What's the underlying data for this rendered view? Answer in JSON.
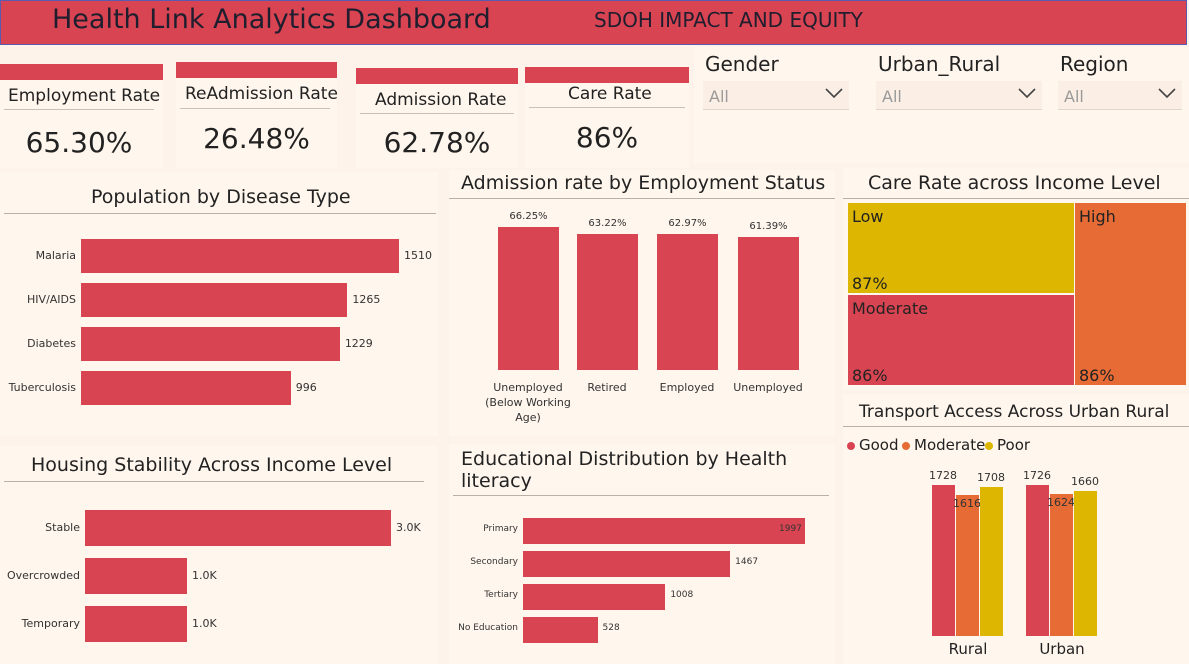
{
  "header": {
    "title": "Health Link Analytics Dashboard",
    "subtitle": "SDOH IMPACT AND EQUITY",
    "color": "#d94452"
  },
  "kpis": [
    {
      "label": "Employment Rate",
      "value": "65.30%"
    },
    {
      "label": "ReAdmission Rate",
      "value": "26.48%"
    },
    {
      "label": "Admission Rate",
      "value": "62.78%"
    },
    {
      "label": "Care Rate",
      "value": "86%"
    }
  ],
  "slicers": [
    {
      "label": "Gender",
      "value": "All",
      "icon": "chevron-down-icon"
    },
    {
      "label": "Urban_Rural",
      "value": "All",
      "icon": "chevron-down-icon"
    },
    {
      "label": "Region",
      "value": "All",
      "icon": "chevron-down-icon"
    }
  ],
  "colors": {
    "red": "#d94452",
    "orange": "#e76b35",
    "yellow": "#dcb600",
    "bg": "#fdf3ea"
  },
  "chart_data": [
    {
      "type": "bar",
      "orientation": "horizontal",
      "title": "Population by Disease Type",
      "categories": [
        "Malaria",
        "HIV/AIDS",
        "Diabetes",
        "Tuberculosis"
      ],
      "values": [
        1510,
        1265,
        1229,
        996
      ],
      "value_labels": [
        "1510",
        "1265",
        "1229",
        "996"
      ]
    },
    {
      "type": "bar",
      "orientation": "vertical",
      "title": "Admission rate by Employment Status",
      "categories": [
        "Unemployed (Below Working Age)",
        "Retired",
        "Employed",
        "Unemployed"
      ],
      "values": [
        66.25,
        63.22,
        62.97,
        61.39
      ],
      "value_labels": [
        "66.25%",
        "63.22%",
        "62.97%",
        "61.39%"
      ]
    },
    {
      "type": "treemap",
      "title": "Care Rate across Income Level",
      "categories": [
        "Low",
        "High",
        "Moderate"
      ],
      "values": [
        87,
        86,
        86
      ],
      "value_labels": [
        "87%",
        "86%",
        "86%"
      ]
    },
    {
      "type": "bar",
      "orientation": "horizontal",
      "title": "Housing Stability Across Income Level",
      "categories": [
        "Stable",
        "Overcrowded",
        "Temporary"
      ],
      "values": [
        3000,
        1000,
        1000
      ],
      "value_labels": [
        "3.0K",
        "1.0K",
        "1.0K"
      ]
    },
    {
      "type": "bar",
      "orientation": "horizontal",
      "title": "Educational Distribution by Health literacy",
      "categories": [
        "Primary",
        "Secondary",
        "Tertiary",
        "No Education"
      ],
      "values": [
        1997,
        1467,
        1008,
        528
      ],
      "value_labels": [
        "1997",
        "1467",
        "1008",
        "528"
      ]
    },
    {
      "type": "bar",
      "orientation": "vertical",
      "grouped": true,
      "title": "Transport Access Across Urban Rural",
      "categories": [
        "Rural",
        "Urban"
      ],
      "legend_position": "top-left",
      "series": [
        {
          "name": "Good",
          "values": [
            1728,
            1726
          ],
          "value_labels": [
            "1728",
            "1726"
          ],
          "color": "#d94452"
        },
        {
          "name": "Moderate",
          "values": [
            1616,
            1624
          ],
          "value_labels": [
            "1616",
            "1624"
          ],
          "color": "#e76b35"
        },
        {
          "name": "Poor",
          "values": [
            1708,
            1660
          ],
          "value_labels": [
            "1708",
            "1660"
          ],
          "color": "#dcb600"
        }
      ]
    }
  ]
}
